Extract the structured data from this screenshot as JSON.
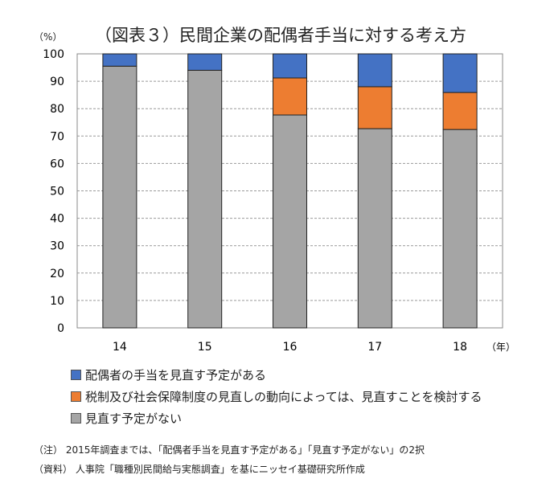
{
  "chart_data": {
    "type": "bar",
    "stacked": true,
    "title": "（図表３）民間企業の配偶者手当に対する考え方",
    "ylabel": "（%）",
    "xlabel": "（年）",
    "ylim": [
      0,
      100
    ],
    "yticks": [
      0,
      10,
      20,
      30,
      40,
      50,
      60,
      70,
      80,
      90,
      100
    ],
    "grid": true,
    "categories": [
      "14",
      "15",
      "16",
      "17",
      "18"
    ],
    "series": [
      {
        "name": "見直す予定がない",
        "color": "#a5a5a5",
        "values": [
          95.5,
          94.0,
          77.7,
          72.7,
          72.4
        ]
      },
      {
        "name": "税制及び社会保障制度の見直しの動向によっては、見直すことを検討する",
        "color": "#ed7d31",
        "values": [
          0,
          0,
          13.5,
          15.3,
          13.5
        ]
      },
      {
        "name": "配偶者の手当を見直す予定がある",
        "color": "#4472c4",
        "values": [
          4.5,
          6.0,
          8.8,
          12.0,
          14.1
        ]
      }
    ],
    "legend_order": [
      2,
      1,
      0
    ],
    "legend_position": "bottom"
  },
  "notes": [
    "（注）  2015年調査までは、「配偶者手当を見直す予定がある」「見直す予定がない」の2択",
    "（資料）  人事院「職種別民間給与実態調査」を基にニッセイ基礎研究所作成"
  ]
}
